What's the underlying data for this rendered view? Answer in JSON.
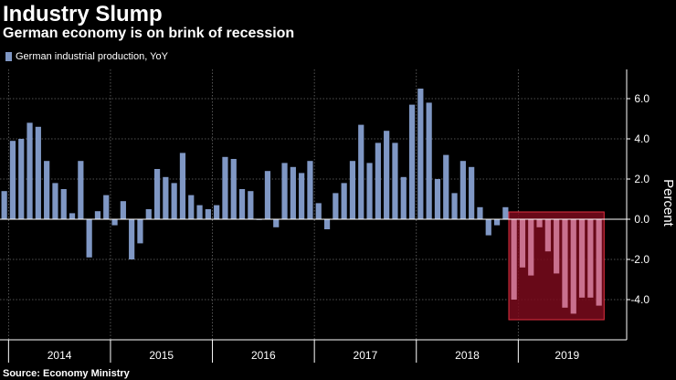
{
  "header": {
    "title": "Industry Slump",
    "subtitle": "German economy is on brink of recession"
  },
  "legend": {
    "label": "German industrial production, YoY"
  },
  "footer": {
    "source": "Source: Economy Ministry"
  },
  "colors": {
    "bar": "#7f97c4",
    "highlight_bar": "#c9708e",
    "highlight_fill": "#7a0a1c",
    "highlight_stroke": "#e0303f",
    "background": "#000000",
    "grid": "#6a6a6a",
    "axis_text": "#ffffff"
  },
  "chart_data": {
    "type": "bar",
    "title": "Industry Slump",
    "subtitle": "German economy is on brink of recession",
    "ylabel": "Percent",
    "xlabel": "",
    "ylim": [
      -6.0,
      7.5
    ],
    "yticks": [
      -4.0,
      -2.0,
      0.0,
      2.0,
      4.0,
      6.0
    ],
    "ytick_labels": [
      "-4.0",
      "-2.0",
      "0.0",
      "2.0",
      "4.0",
      "6.0"
    ],
    "year_labels": [
      "2014",
      "2015",
      "2016",
      "2017",
      "2018",
      "2019"
    ],
    "legend_position": "top-left",
    "grid": true,
    "series": [
      {
        "name": "German industrial production, YoY",
        "start": "2013-12",
        "values": [
          1.4,
          3.9,
          4.0,
          4.8,
          4.6,
          2.9,
          1.8,
          1.5,
          0.3,
          2.9,
          -1.9,
          0.4,
          1.2,
          -0.3,
          0.9,
          -2.0,
          -1.2,
          0.5,
          2.5,
          2.1,
          1.8,
          3.3,
          1.2,
          0.7,
          0.5,
          0.7,
          3.1,
          3.0,
          1.5,
          1.4,
          0.0,
          2.4,
          -0.4,
          2.8,
          2.6,
          2.3,
          2.9,
          0.8,
          -0.5,
          1.3,
          1.8,
          2.9,
          4.7,
          2.8,
          3.8,
          4.4,
          3.8,
          2.1,
          5.7,
          6.5,
          5.8,
          2.0,
          3.2,
          1.3,
          2.9,
          2.6,
          0.6,
          -0.8,
          -0.3,
          0.6,
          -4.0,
          -2.4,
          -2.8,
          -0.4,
          -1.6,
          -2.7,
          -4.4,
          -4.7,
          -3.9,
          -3.9,
          -4.3
        ]
      }
    ],
    "highlight": {
      "label_period": "2018-12 to 2019-10",
      "from_index": 60,
      "to_index": 70
    }
  }
}
